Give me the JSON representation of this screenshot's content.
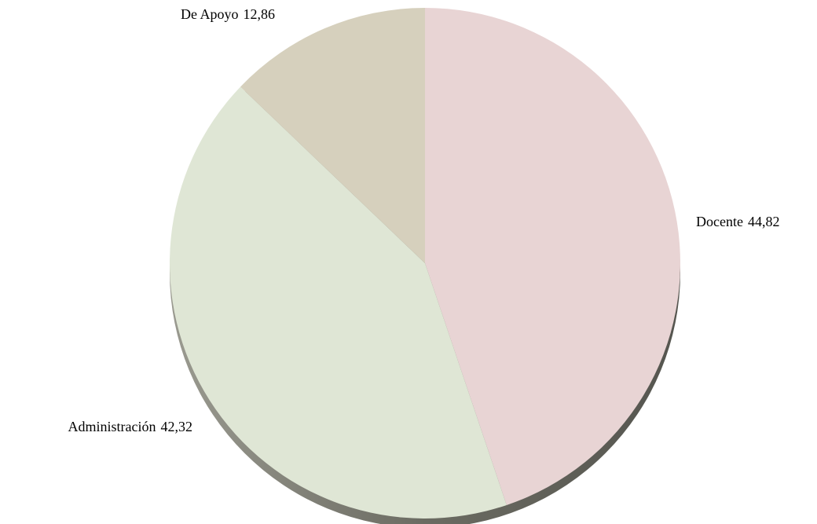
{
  "chart_data": {
    "type": "pie",
    "categories": [
      "Docente",
      "Administración",
      "De Apoyo"
    ],
    "values": [
      44.82,
      42.32,
      12.86
    ],
    "value_labels": [
      "44,82",
      "42,32",
      "12,86"
    ],
    "colors": [
      "#e8d4d4",
      "#dfe6d5",
      "#d6d0bd"
    ]
  }
}
